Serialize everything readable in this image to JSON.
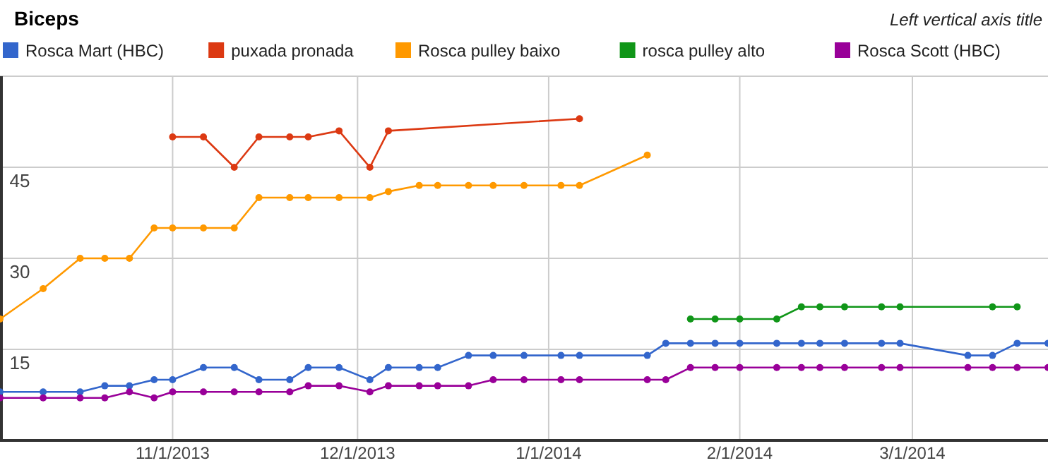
{
  "chart_data": {
    "type": "line",
    "title": "Biceps",
    "ylabel": "Left vertical axis title",
    "legend": "top",
    "grid": true,
    "marker": "circle",
    "line_style": "solid",
    "xlim": [
      "2013-10-04",
      "2014-03-23"
    ],
    "xticks": [
      {
        "value": "2013-11-01",
        "label": "11/1/2013"
      },
      {
        "value": "2013-12-01",
        "label": "12/1/2013"
      },
      {
        "value": "2014-01-01",
        "label": "1/1/2014"
      },
      {
        "value": "2014-02-01",
        "label": "2/1/2014"
      },
      {
        "value": "2014-03-01",
        "label": "3/1/2014"
      }
    ],
    "ylim": [
      0,
      60
    ],
    "yticks": [
      {
        "value": 0,
        "label": null
      },
      15,
      30,
      45,
      {
        "value": 60,
        "label": null
      }
    ],
    "series": [
      {
        "name": "Rosca Mart (HBC)",
        "color": "#3366cc",
        "x": [
          "2013-10-04",
          "2013-10-11",
          "2013-10-17",
          "2013-10-21",
          "2013-10-25",
          "2013-10-29",
          "2013-11-01",
          "2013-11-06",
          "2013-11-11",
          "2013-11-15",
          "2013-11-20",
          "2013-11-23",
          "2013-11-28",
          "2013-12-03",
          "2013-12-06",
          "2013-12-11",
          "2013-12-14",
          "2013-12-19",
          "2013-12-23",
          "2013-12-28",
          "2014-01-03",
          "2014-01-06",
          "2014-01-17",
          "2014-01-20",
          "2014-01-24",
          "2014-01-28",
          "2014-02-01",
          "2014-02-07",
          "2014-02-11",
          "2014-02-14",
          "2014-02-18",
          "2014-02-24",
          "2014-02-27",
          "2014-03-10",
          "2014-03-14",
          "2014-03-18",
          "2014-03-23"
        ],
        "values": [
          8,
          8,
          8,
          9,
          9,
          10,
          10,
          12,
          12,
          10,
          10,
          12,
          12,
          10,
          12,
          12,
          12,
          14,
          14,
          14,
          14,
          14,
          14,
          16,
          16,
          16,
          16,
          16,
          16,
          16,
          16,
          16,
          16,
          14,
          14,
          16,
          16
        ]
      },
      {
        "name": "puxada pronada",
        "color": "#dc3912",
        "x": [
          "2013-11-01",
          "2013-11-06",
          "2013-11-11",
          "2013-11-15",
          "2013-11-20",
          "2013-11-23",
          "2013-11-28",
          "2013-12-03",
          "2013-12-06",
          "2014-01-06"
        ],
        "values": [
          50,
          50,
          45,
          50,
          50,
          50,
          51,
          45,
          51,
          53
        ]
      },
      {
        "name": "Rosca pulley baixo",
        "color": "#ff9900",
        "x": [
          "2013-10-04",
          "2013-10-11",
          "2013-10-17",
          "2013-10-21",
          "2013-10-25",
          "2013-10-29",
          "2013-11-01",
          "2013-11-06",
          "2013-11-11",
          "2013-11-15",
          "2013-11-20",
          "2013-11-23",
          "2013-11-28",
          "2013-12-03",
          "2013-12-06",
          "2013-12-11",
          "2013-12-14",
          "2013-12-19",
          "2013-12-23",
          "2013-12-28",
          "2014-01-03",
          "2014-01-06",
          "2014-01-17"
        ],
        "values": [
          20,
          25,
          30,
          30,
          30,
          35,
          35,
          35,
          35,
          40,
          40,
          40,
          40,
          40,
          41,
          42,
          42,
          42,
          42,
          42,
          42,
          42,
          47
        ]
      },
      {
        "name": "rosca pulley alto",
        "color": "#109618",
        "x": [
          "2014-01-24",
          "2014-01-28",
          "2014-02-01",
          "2014-02-07",
          "2014-02-11",
          "2014-02-14",
          "2014-02-18",
          "2014-02-24",
          "2014-02-27",
          "2014-03-14",
          "2014-03-18"
        ],
        "values": [
          20,
          20,
          20,
          20,
          22,
          22,
          22,
          22,
          22,
          22,
          22
        ]
      },
      {
        "name": "Rosca Scott (HBC)",
        "color": "#990099",
        "x": [
          "2013-10-04",
          "2013-10-11",
          "2013-10-17",
          "2013-10-21",
          "2013-10-25",
          "2013-10-29",
          "2013-11-01",
          "2013-11-06",
          "2013-11-11",
          "2013-11-15",
          "2013-11-20",
          "2013-11-23",
          "2013-11-28",
          "2013-12-03",
          "2013-12-06",
          "2013-12-11",
          "2013-12-14",
          "2013-12-19",
          "2013-12-23",
          "2013-12-28",
          "2014-01-03",
          "2014-01-06",
          "2014-01-17",
          "2014-01-20",
          "2014-01-24",
          "2014-01-28",
          "2014-02-01",
          "2014-02-07",
          "2014-02-11",
          "2014-02-14",
          "2014-02-18",
          "2014-02-24",
          "2014-02-27",
          "2014-03-10",
          "2014-03-14",
          "2014-03-18",
          "2014-03-23"
        ],
        "values": [
          7,
          7,
          7,
          7,
          8,
          7,
          8,
          8,
          8,
          8,
          8,
          9,
          9,
          8,
          9,
          9,
          9,
          9,
          10,
          10,
          10,
          10,
          10,
          10,
          12,
          12,
          12,
          12,
          12,
          12,
          12,
          12,
          12,
          12,
          12,
          12,
          12
        ]
      }
    ]
  }
}
